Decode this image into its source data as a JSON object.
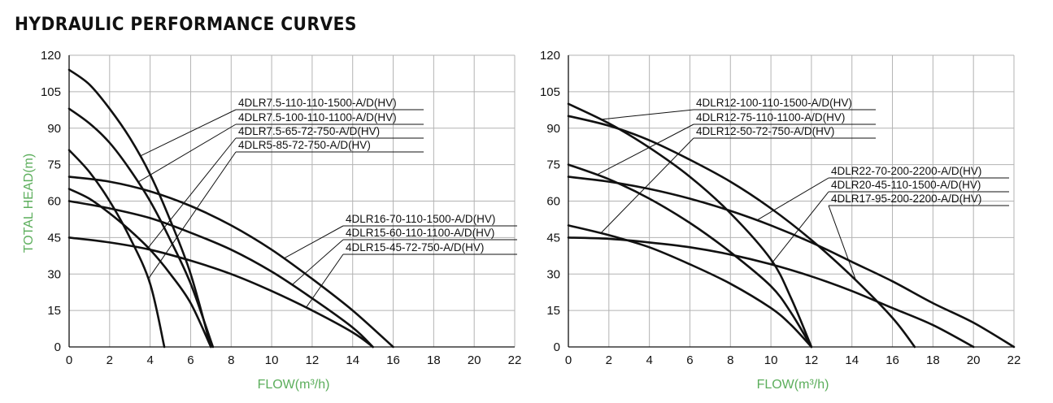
{
  "page_title": "HYDRAULIC PERFORMANCE CURVES",
  "colors": {
    "axis_label": "#5cae5c",
    "curve": "#111111",
    "grid": "#b3b3b3"
  },
  "chart_data": [
    {
      "type": "line",
      "xlabel": "FLOW(m³/h)",
      "ylabel": "TOTAL HEAD(m)",
      "xlim": [
        0,
        22
      ],
      "ylim": [
        0,
        120
      ],
      "xticks": [
        0,
        2,
        4,
        6,
        8,
        10,
        12,
        14,
        16,
        18,
        20,
        22
      ],
      "yticks": [
        0,
        15,
        30,
        45,
        60,
        75,
        90,
        105,
        120
      ],
      "grid": true,
      "series": [
        {
          "name": "4DLR7.5-110-110-1500-A/D(HV)",
          "x": [
            0,
            1,
            2,
            3,
            4,
            5,
            6,
            7
          ],
          "y": [
            114,
            108,
            98,
            86,
            71,
            52,
            30,
            0
          ]
        },
        {
          "name": "4DLR7.5-100-110-1100-A/D(HV)",
          "x": [
            0,
            1,
            2,
            3,
            4,
            5,
            6,
            7.1
          ],
          "y": [
            98,
            92,
            84,
            73,
            60,
            44,
            26,
            0
          ]
        },
        {
          "name": "4DLR7.5-65-72-750-A/D(HV)",
          "x": [
            0,
            1,
            2,
            3,
            4,
            5,
            6,
            7
          ],
          "y": [
            65,
            61,
            55,
            48,
            40,
            30,
            18,
            0
          ]
        },
        {
          "name": "4DLR5-85-72-750-A/D(HV)",
          "x": [
            0,
            1,
            2,
            3,
            4,
            4.7
          ],
          "y": [
            81,
            72,
            60,
            45,
            26,
            0
          ]
        },
        {
          "name": "4DLR16-70-110-1500-A/D(HV)",
          "x": [
            0,
            2,
            4,
            6,
            8,
            10,
            12,
            14,
            16
          ],
          "y": [
            70,
            68,
            64,
            58,
            50,
            40,
            28,
            15,
            0
          ]
        },
        {
          "name": "4DLR15-60-110-1100-A/D(HV)",
          "x": [
            0,
            2,
            4,
            6,
            8,
            10,
            12,
            14,
            15
          ],
          "y": [
            60,
            57,
            53,
            47,
            40,
            31,
            20,
            8,
            0
          ]
        },
        {
          "name": "4DLR15-45-72-750-A/D(HV)",
          "x": [
            0,
            2,
            4,
            6,
            8,
            10,
            12,
            14,
            15
          ],
          "y": [
            45,
            43,
            40,
            35.5,
            30,
            23,
            15,
            6,
            0
          ]
        }
      ],
      "annotations": [
        {
          "text": "4DLR7.5-110-110-1500-A/D(HV)",
          "series": 0
        },
        {
          "text": "4DLR7.5-100-110-1100-A/D(HV)",
          "series": 1
        },
        {
          "text": "4DLR7.5-65-72-750-A/D(HV)",
          "series": 2
        },
        {
          "text": "4DLR5-85-72-750-A/D(HV)",
          "series": 3
        },
        {
          "text": "4DLR16-70-110-1500-A/D(HV)",
          "series": 4
        },
        {
          "text": "4DLR15-60-110-1100-A/D(HV)",
          "series": 5
        },
        {
          "text": "4DLR15-45-72-750-A/D(HV)",
          "series": 6
        }
      ]
    },
    {
      "type": "line",
      "xlabel": "FLOW(m³/h)",
      "ylabel": "",
      "xlim": [
        0,
        22
      ],
      "ylim": [
        0,
        120
      ],
      "xticks": [
        0,
        2,
        4,
        6,
        8,
        10,
        12,
        14,
        16,
        18,
        20,
        22
      ],
      "yticks": [
        0,
        15,
        30,
        45,
        60,
        75,
        90,
        105,
        120
      ],
      "grid": true,
      "series": [
        {
          "name": "4DLR12-100-110-1500-A/D(HV)",
          "x": [
            0,
            2,
            4,
            6,
            8,
            10,
            11,
            12
          ],
          "y": [
            100,
            92,
            82,
            70,
            55,
            36,
            20,
            0
          ]
        },
        {
          "name": "4DLR12-75-110-1100-A/D(HV)",
          "x": [
            0,
            2,
            4,
            6,
            8,
            10,
            11,
            12
          ],
          "y": [
            75,
            69,
            61,
            51,
            39,
            25,
            14,
            0
          ]
        },
        {
          "name": "4DLR12-50-72-750-A/D(HV)",
          "x": [
            0,
            2,
            4,
            6,
            8,
            10,
            11,
            12
          ],
          "y": [
            50,
            46,
            41,
            34,
            26,
            16,
            9,
            0
          ]
        },
        {
          "name": "4DLR22-70-200-2200-A/D(HV)",
          "x": [
            0,
            2,
            4,
            6,
            8,
            10,
            12,
            14,
            16,
            18,
            20,
            22
          ],
          "y": [
            70,
            68,
            65,
            61,
            56,
            50,
            43,
            35,
            27,
            18,
            10,
            0
          ]
        },
        {
          "name": "4DLR20-45-110-1500-A/D(HV)",
          "x": [
            0,
            2,
            4,
            6,
            8,
            10,
            12,
            14,
            16,
            18,
            20
          ],
          "y": [
            45,
            44.5,
            43,
            41,
            38,
            34,
            29,
            23,
            16,
            9,
            0
          ]
        },
        {
          "name": "4DLR17-95-200-2200-A/D(HV)",
          "x": [
            0,
            2,
            4,
            6,
            8,
            10,
            12,
            14,
            16,
            17.1
          ],
          "y": [
            95,
            91,
            85,
            77,
            68,
            57,
            44,
            29,
            12,
            0
          ]
        }
      ],
      "annotations": [
        {
          "text": "4DLR12-100-110-1500-A/D(HV)",
          "series": 0
        },
        {
          "text": "4DLR12-75-110-1100-A/D(HV)",
          "series": 1
        },
        {
          "text": "4DLR12-50-72-750-A/D(HV)",
          "series": 2
        },
        {
          "text": "4DLR22-70-200-2200-A/D(HV)",
          "series": 3
        },
        {
          "text": "4DLR20-45-110-1500-A/D(HV)",
          "series": 4
        },
        {
          "text": "4DLR17-95-200-2200-A/D(HV)",
          "series": 5
        }
      ]
    }
  ]
}
